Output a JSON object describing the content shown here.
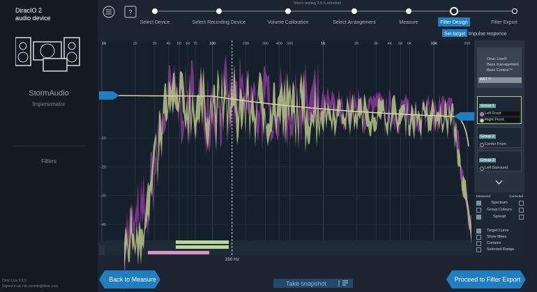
{
  "window_title": "Storm testing 3.6.5.relocked",
  "help_icon": "?",
  "sidebar": {
    "device_name": "DiracIO 2",
    "device_type": "audio device",
    "brand": "StormAudio",
    "product": "Impersonator",
    "section": "Filters",
    "version": "Dirac Live 3.6.5",
    "signed_in": "Signed in as nils.cosmin@dirac.com"
  },
  "steps": [
    "Select Device",
    "Select Recording Device",
    "Volume Calibration",
    "Select Arrangement",
    "Measure",
    "Filter Design",
    "Filter Export"
  ],
  "active_step": 5,
  "tabs": [
    "Set target",
    "Impulse response"
  ],
  "plot": {
    "xlim": [
      10,
      20000
    ],
    "xticks": [
      10,
      20,
      30,
      40,
      50,
      60,
      70,
      100,
      200,
      300,
      400,
      500,
      {
        "value": 1000,
        "label": "1K"
      },
      {
        "value": 2000,
        "label": "2K"
      },
      {
        "value": 3000,
        "label": "3K"
      },
      {
        "value": 4000,
        "label": "4K"
      },
      {
        "value": 5000,
        "label": "5K"
      },
      {
        "value": 6000,
        "label": "6K"
      },
      {
        "value": 10000,
        "label": "10K"
      },
      {
        "value": 20000,
        "label": "20K"
      }
    ],
    "yticks": [
      -10,
      -20,
      -30,
      -40
    ],
    "marker": {
      "value": 150,
      "label": "150 Hz"
    }
  },
  "right_panel": {
    "menu": [
      "Dirac Live®",
      "Bass management",
      "Bass Control™"
    ],
    "art": "ART™",
    "groups": [
      {
        "name": "Group 1",
        "channels": [
          "Left Front",
          "Right Front"
        ]
      },
      {
        "name": "Group 2",
        "channels": [
          "Center Front"
        ]
      },
      {
        "name": "Group 3",
        "channels": [
          "Left Surround"
        ]
      }
    ],
    "columns": [
      "Measured",
      "Corrected"
    ],
    "options": [
      {
        "label": "Spectrum",
        "measured": true,
        "corrected": false
      },
      {
        "label": "Group Colours",
        "measured": false,
        "corrected": false
      },
      {
        "label": "Spread",
        "measured": true,
        "corrected": false
      }
    ],
    "toggles": [
      {
        "label": "Target Curve",
        "checked": true
      },
      {
        "label": "Show filters",
        "checked": false
      },
      {
        "label": "Curtains",
        "checked": false
      },
      {
        "label": "Selected Range",
        "checked": false
      }
    ]
  },
  "buttons": {
    "back": "Back to Measure",
    "snapshot": "Take snapshot",
    "proceed": "Proceed to Filter Export"
  }
}
